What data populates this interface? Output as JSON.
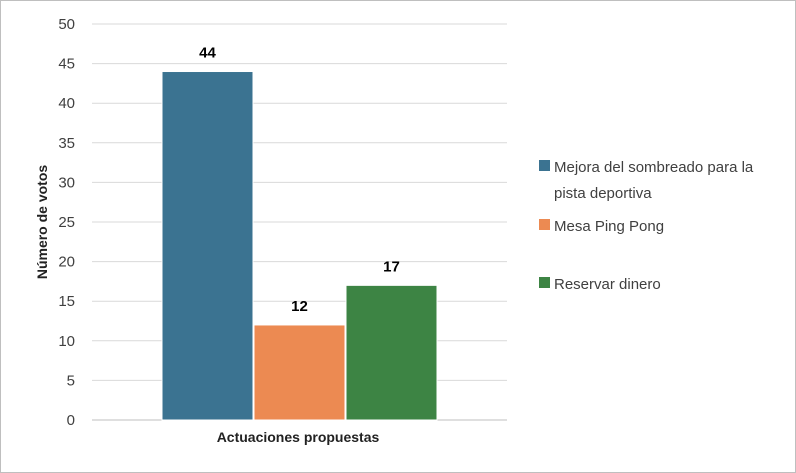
{
  "chart_data": {
    "type": "bar",
    "xlabel": "Actuaciones propuestas",
    "ylabel": "Número de votos",
    "ylim": [
      0,
      50
    ],
    "ytick_step": 5,
    "grid": true,
    "legend_position": "right",
    "series": [
      {
        "name": "Mejora del sombreado para la pista deportiva",
        "name_lines": [
          "Mejora del sombreado para la",
          "pista deportiva"
        ],
        "value": 44,
        "color": "#3b7391"
      },
      {
        "name": "Mesa Ping Pong",
        "name_lines": [
          "Mesa Ping Pong"
        ],
        "value": 12,
        "color": "#ec8a52"
      },
      {
        "name": "Reservar dinero",
        "name_lines": [
          "Reservar dinero"
        ],
        "value": 17,
        "color": "#3d8444"
      }
    ]
  }
}
